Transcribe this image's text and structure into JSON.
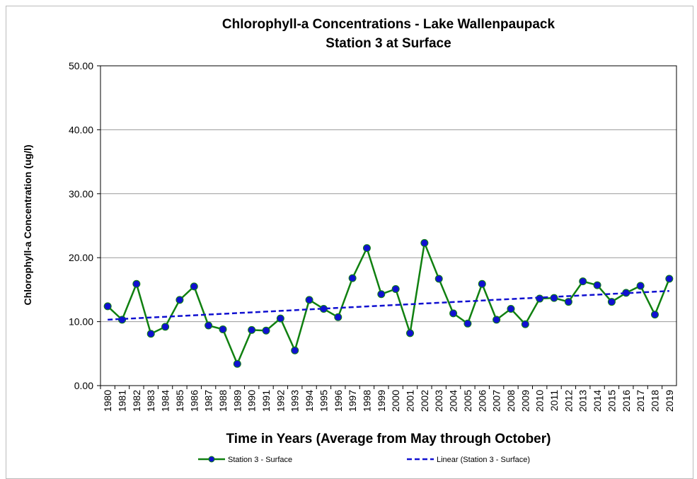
{
  "chart_data": {
    "type": "line",
    "title": "Chlorophyll-a Concentrations  - Lake Wallenpaupack",
    "subtitle": "Station 3 at Surface",
    "y_label": "Chlorophyll-a Concentration (ug/l)",
    "x_label": "Time in Years (Average from May through October)",
    "categories": [
      "1980",
      "1981",
      "1982",
      "1983",
      "1984",
      "1985",
      "1986",
      "1987",
      "1988",
      "1989",
      "1990",
      "1991",
      "1992",
      "1993",
      "1994",
      "1995",
      "1996",
      "1997",
      "1998",
      "1999",
      "2000",
      "2001",
      "2002",
      "2003",
      "2004",
      "2005",
      "2006",
      "2007",
      "2008",
      "2009",
      "2010",
      "2011",
      "2012",
      "2013",
      "2014",
      "2015",
      "2016",
      "2017",
      "2018",
      "2019"
    ],
    "series": [
      {
        "name": "Station 3 - Surface",
        "color": "#108010",
        "marker_color": "#1010d0",
        "dashed": false,
        "values": [
          12.4,
          10.3,
          15.9,
          8.1,
          9.2,
          13.4,
          15.5,
          9.4,
          8.8,
          3.4,
          8.7,
          8.6,
          10.5,
          5.5,
          13.4,
          12.0,
          10.7,
          16.8,
          21.5,
          14.3,
          15.1,
          8.2,
          22.3,
          16.7,
          11.3,
          9.7,
          15.9,
          10.3,
          12.0,
          9.6,
          13.6,
          13.7,
          13.1,
          16.3,
          15.7,
          13.1,
          14.5,
          15.6,
          11.1,
          16.7
        ]
      },
      {
        "name": "Linear (Station 3 - Surface)",
        "color": "#1010d0",
        "dashed": true,
        "values": [
          10.3,
          10.42,
          10.53,
          10.65,
          10.76,
          10.88,
          10.99,
          11.11,
          11.22,
          11.34,
          11.45,
          11.57,
          11.68,
          11.8,
          11.92,
          12.03,
          12.15,
          12.26,
          12.38,
          12.49,
          12.61,
          12.72,
          12.84,
          12.95,
          13.07,
          13.18,
          13.3,
          13.42,
          13.53,
          13.65,
          13.76,
          13.88,
          13.99,
          14.11,
          14.22,
          14.34,
          14.45,
          14.57,
          14.68,
          14.8
        ]
      }
    ],
    "ylim": [
      0,
      50
    ],
    "yticks": [
      {
        "value": 0,
        "label": "0.00"
      },
      {
        "value": 10,
        "label": "10.00"
      },
      {
        "value": 20,
        "label": "20.00"
      },
      {
        "value": 30,
        "label": "30.00"
      },
      {
        "value": 40,
        "label": "40.00"
      },
      {
        "value": 50,
        "label": "50.00"
      }
    ],
    "grid": true,
    "legend": "bottom"
  }
}
